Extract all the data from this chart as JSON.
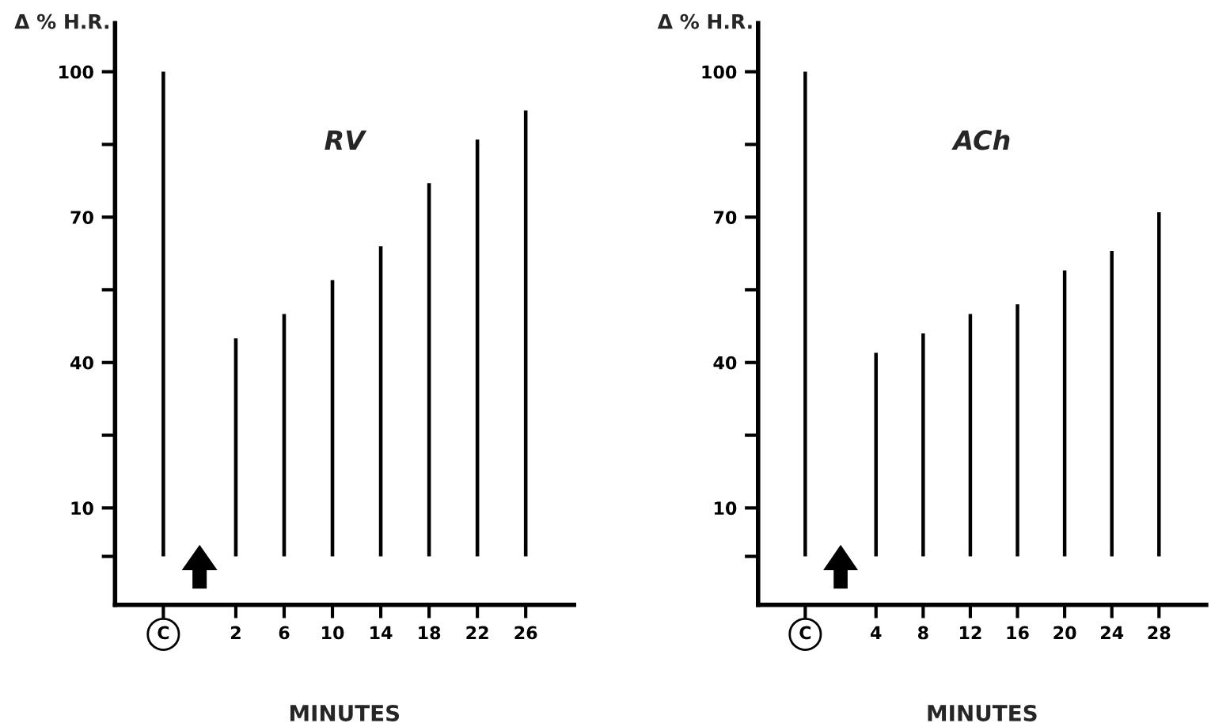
{
  "chart_data": [
    {
      "type": "bar",
      "title": "RV",
      "ylabel": "Δ % H.R.",
      "xlabel": "MINUTES",
      "x": [
        -4,
        2,
        6,
        10,
        14,
        18,
        22,
        26
      ],
      "values": [
        100,
        45,
        50,
        57,
        64,
        77,
        86,
        92
      ],
      "color": "#000000",
      "xlim": [
        -8,
        30
      ],
      "xticks": [
        {
          "value": -4,
          "label": "C"
        },
        2,
        6,
        10,
        14,
        18,
        22,
        26
      ],
      "ylim": [
        -10,
        110
      ],
      "yticks": [
        {
          "value": 0,
          "label": null
        },
        10,
        {
          "value": 25,
          "label": null
        },
        40,
        {
          "value": 55,
          "label": null
        },
        70,
        {
          "value": 85,
          "label": null
        },
        100
      ],
      "grid": false
    },
    {
      "type": "bar",
      "title": "ACh",
      "ylabel": "Δ % H.R.",
      "xlabel": "MINUTES",
      "x": [
        -2,
        4,
        8,
        12,
        16,
        20,
        24,
        28
      ],
      "values": [
        100,
        42,
        46,
        50,
        52,
        59,
        63,
        71
      ],
      "color": "#000000",
      "xlim": [
        -6,
        32
      ],
      "xticks": [
        {
          "value": -2,
          "label": "C"
        },
        4,
        8,
        12,
        16,
        20,
        24,
        28
      ],
      "ylim": [
        -10,
        110
      ],
      "yticks": [
        {
          "value": 0,
          "label": null
        },
        10,
        {
          "value": 25,
          "label": null
        },
        40,
        {
          "value": 55,
          "label": null
        },
        70,
        {
          "value": 85,
          "label": null
        },
        100
      ],
      "grid": false
    }
  ]
}
